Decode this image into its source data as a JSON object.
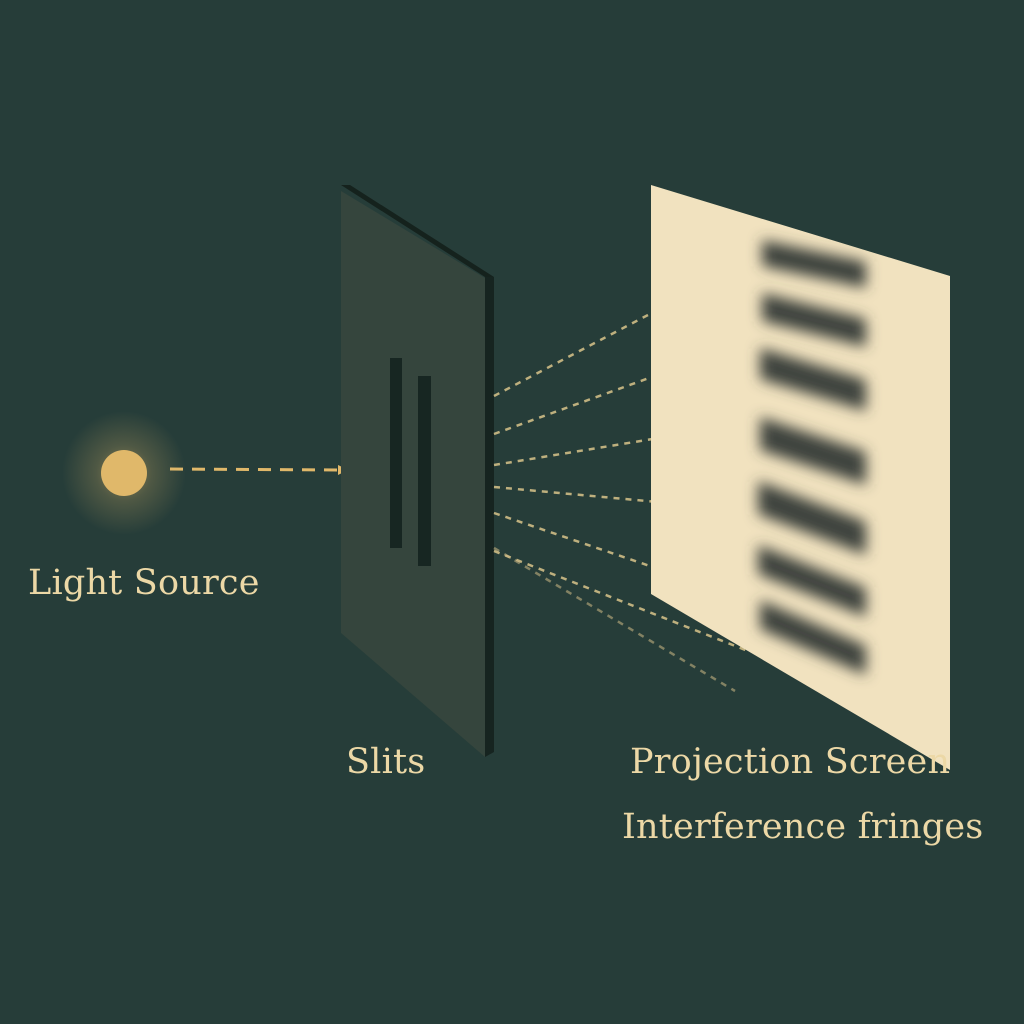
{
  "labels": {
    "light_source": "Light Source",
    "slits": "Slits",
    "projection_screen": "Projection Screen",
    "interference_fringes": "Interference fringes"
  },
  "colors": {
    "background": "#263d39",
    "light": "#e0b86a",
    "label_text": "#ecd8a6",
    "barrier_face": "#35453d",
    "barrier_edge": "#17241f",
    "screen": "#f1e2bf",
    "fringe": "#3e433c"
  },
  "diagram": {
    "slit_count": 2,
    "ray_count": 7,
    "dark_fringe_count": 7
  }
}
